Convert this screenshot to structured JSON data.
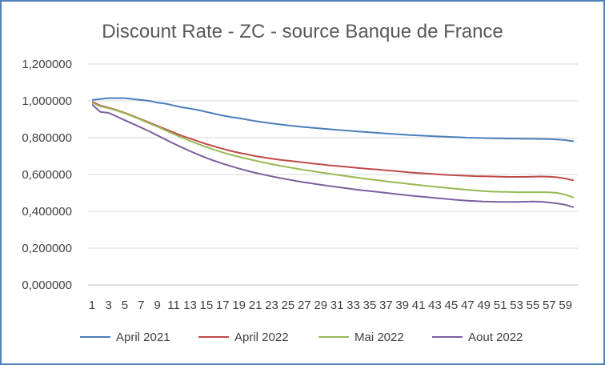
{
  "chart_data": {
    "type": "line",
    "title": "Discount Rate - ZC - source Banque  de France",
    "xlabel": "",
    "ylabel": "",
    "x": [
      1,
      2,
      3,
      4,
      5,
      6,
      7,
      8,
      9,
      10,
      11,
      12,
      13,
      14,
      15,
      16,
      17,
      18,
      19,
      20,
      21,
      22,
      23,
      24,
      25,
      26,
      27,
      28,
      29,
      30,
      31,
      32,
      33,
      34,
      35,
      36,
      37,
      38,
      39,
      40,
      41,
      42,
      43,
      44,
      45,
      46,
      47,
      48,
      49,
      50,
      51,
      52,
      53,
      54,
      55,
      56,
      57,
      58,
      59,
      60
    ],
    "x_tick_labels": [
      "1",
      "3",
      "5",
      "7",
      "9",
      "11",
      "13",
      "15",
      "17",
      "19",
      "21",
      "23",
      "25",
      "27",
      "29",
      "31",
      "33",
      "35",
      "37",
      "39",
      "41",
      "43",
      "45",
      "47",
      "49",
      "51",
      "53",
      "55",
      "57",
      "59"
    ],
    "ylim": [
      0,
      1.2
    ],
    "y_ticks": [
      0,
      0.2,
      0.4,
      0.6,
      0.8,
      1.0,
      1.2
    ],
    "y_tick_labels": [
      "0,000000",
      "0,200000",
      "0,400000",
      "0,600000",
      "0,800000",
      "1,000000",
      "1,200000"
    ],
    "grid": true,
    "legend_position": "bottom",
    "series": [
      {
        "name": "April 2021",
        "color": "#4a7ebb",
        "values": [
          1.005,
          1.01,
          1.015,
          1.015,
          1.015,
          1.01,
          1.005,
          1.0,
          0.99,
          0.985,
          0.975,
          0.965,
          0.958,
          0.95,
          0.94,
          0.93,
          0.92,
          0.912,
          0.906,
          0.898,
          0.89,
          0.884,
          0.878,
          0.872,
          0.867,
          0.862,
          0.858,
          0.854,
          0.85,
          0.846,
          0.842,
          0.839,
          0.836,
          0.832,
          0.829,
          0.826,
          0.823,
          0.82,
          0.817,
          0.814,
          0.812,
          0.81,
          0.808,
          0.806,
          0.804,
          0.802,
          0.8,
          0.799,
          0.798,
          0.797,
          0.796,
          0.795,
          0.795,
          0.794,
          0.794,
          0.793,
          0.792,
          0.79,
          0.787,
          0.78
        ]
      },
      {
        "name": "April 2022",
        "color": "#be4b48",
        "values": [
          0.995,
          0.975,
          0.963,
          0.95,
          0.935,
          0.918,
          0.9,
          0.882,
          0.864,
          0.846,
          0.828,
          0.81,
          0.795,
          0.78,
          0.765,
          0.752,
          0.74,
          0.728,
          0.718,
          0.709,
          0.7,
          0.693,
          0.686,
          0.68,
          0.675,
          0.67,
          0.665,
          0.66,
          0.655,
          0.65,
          0.646,
          0.642,
          0.638,
          0.634,
          0.63,
          0.627,
          0.623,
          0.619,
          0.615,
          0.611,
          0.608,
          0.605,
          0.602,
          0.599,
          0.597,
          0.595,
          0.593,
          0.591,
          0.59,
          0.589,
          0.588,
          0.587,
          0.587,
          0.587,
          0.588,
          0.589,
          0.588,
          0.585,
          0.578,
          0.568
        ]
      },
      {
        "name": "Mai 2022",
        "color": "#98b954",
        "values": [
          0.99,
          0.97,
          0.96,
          0.948,
          0.932,
          0.915,
          0.897,
          0.878,
          0.86,
          0.84,
          0.82,
          0.8,
          0.782,
          0.765,
          0.749,
          0.734,
          0.72,
          0.707,
          0.696,
          0.685,
          0.675,
          0.665,
          0.656,
          0.648,
          0.64,
          0.632,
          0.625,
          0.618,
          0.611,
          0.605,
          0.598,
          0.592,
          0.586,
          0.58,
          0.574,
          0.569,
          0.563,
          0.558,
          0.553,
          0.548,
          0.543,
          0.538,
          0.534,
          0.529,
          0.525,
          0.521,
          0.517,
          0.513,
          0.509,
          0.507,
          0.506,
          0.505,
          0.504,
          0.504,
          0.504,
          0.504,
          0.503,
          0.5,
          0.49,
          0.475
        ]
      },
      {
        "name": "Aout 2022",
        "color": "#7d60a0",
        "values": [
          0.98,
          0.94,
          0.935,
          0.915,
          0.895,
          0.875,
          0.855,
          0.835,
          0.812,
          0.79,
          0.768,
          0.747,
          0.727,
          0.708,
          0.69,
          0.674,
          0.659,
          0.645,
          0.632,
          0.62,
          0.609,
          0.599,
          0.59,
          0.581,
          0.573,
          0.565,
          0.558,
          0.551,
          0.544,
          0.538,
          0.532,
          0.526,
          0.52,
          0.515,
          0.51,
          0.505,
          0.5,
          0.495,
          0.49,
          0.485,
          0.481,
          0.477,
          0.473,
          0.469,
          0.465,
          0.461,
          0.458,
          0.455,
          0.453,
          0.452,
          0.451,
          0.451,
          0.451,
          0.452,
          0.453,
          0.452,
          0.448,
          0.443,
          0.435,
          0.422
        ]
      }
    ]
  }
}
